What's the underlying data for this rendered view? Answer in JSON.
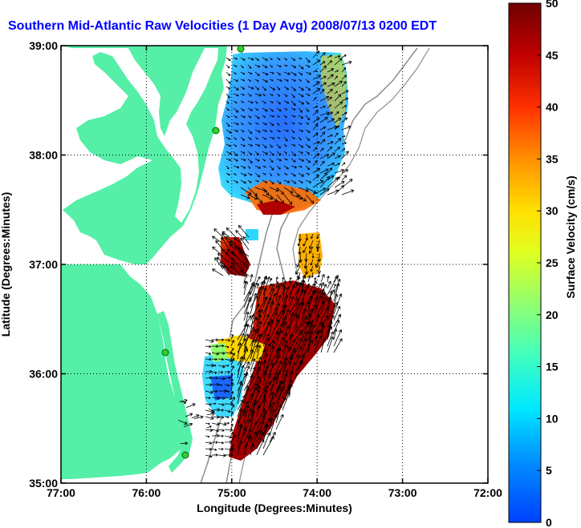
{
  "title": "Southern Mid-Atlantic Raw Velocities (1 Day Avg) 2008/07/13 0200 EDT",
  "xlabel": "Longitude (Degrees:Minutes)",
  "ylabel": "Latitude (Degrees:Minutes)",
  "colorbar_label": "Surface Velocity (cm/s)",
  "x_ticks": [
    "77:00",
    "76:00",
    "75:00",
    "74:00",
    "73:00",
    "72:00"
  ],
  "y_ticks": [
    "39:00",
    "38:00",
    "37:00",
    "36:00",
    "35:00"
  ],
  "colorbar_ticks": [
    "0",
    "5",
    "10",
    "15",
    "20",
    "25",
    "30",
    "35",
    "40",
    "45",
    "50"
  ],
  "colors": {
    "land": "#55efa8",
    "title": "#0000ff",
    "bathymetry": "#8c8c8c",
    "station": "#33cc33"
  }
}
